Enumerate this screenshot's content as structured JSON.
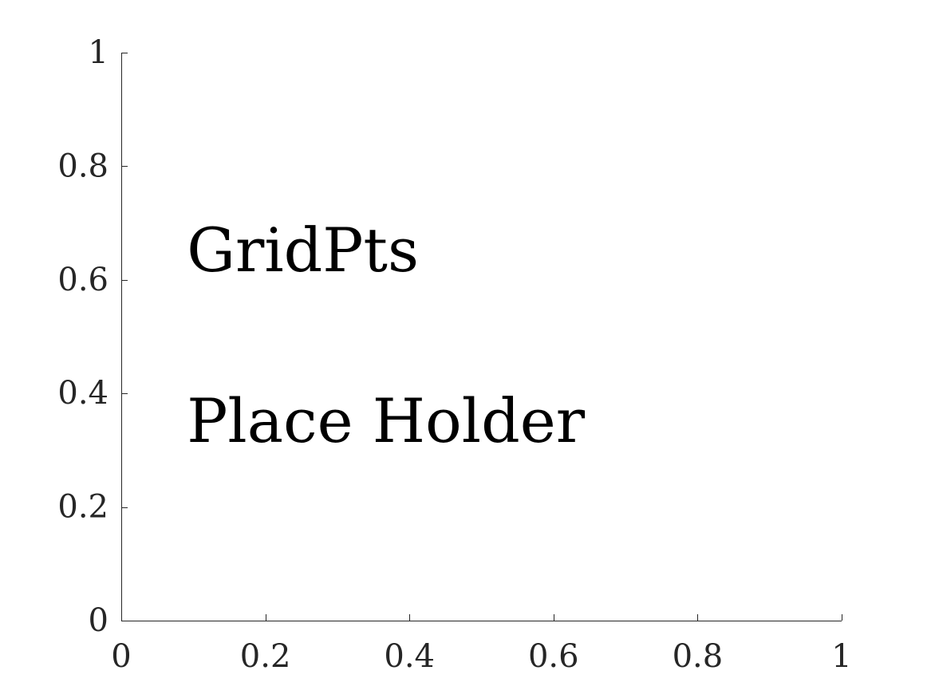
{
  "chart_data": {
    "type": "scatter",
    "title": "",
    "xlabel": "",
    "ylabel": "",
    "xlim": [
      0,
      1
    ],
    "ylim": [
      0,
      1
    ],
    "grid": false,
    "x_ticks": [
      0,
      0.2,
      0.4,
      0.6,
      0.8,
      1
    ],
    "x_tick_labels": [
      "0",
      "0.2",
      "0.4",
      "0.6",
      "0.8",
      "1"
    ],
    "y_ticks": [
      0,
      0.2,
      0.4,
      0.6,
      0.8,
      1
    ],
    "y_tick_labels": [
      "0",
      "0.2",
      "0.4",
      "0.6",
      "0.8",
      "1"
    ],
    "series": [],
    "annotations": [
      {
        "text": "GridPts",
        "x": 0.1,
        "y": 0.65
      },
      {
        "text": "Place Holder",
        "x": 0.1,
        "y": 0.35
      }
    ],
    "colors": {
      "axis": "#262626",
      "annotation": "#000000"
    }
  }
}
